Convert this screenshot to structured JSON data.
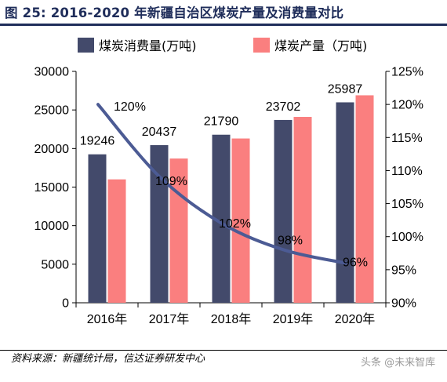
{
  "header": {
    "title": "图 25:  2016-2020 年新疆自治区煤炭产量及消费量对比"
  },
  "footer": {
    "source": "资料来源：新疆统计局，信达证券研发中心",
    "watermark": "头条 @未来智库"
  },
  "colors": {
    "consumption": "#434a6b",
    "production": "#fa7f7f",
    "ratio_line": "#4c5b94",
    "title": "#1f2d5a"
  },
  "chart_data": {
    "type": "bar",
    "title": "",
    "categories": [
      "2016年",
      "2017年",
      "2018年",
      "2019年",
      "2020年"
    ],
    "series": [
      {
        "name": "煤炭消费量(万吨)",
        "type": "bar",
        "axis": "left",
        "values": [
          19246,
          20437,
          21790,
          23702,
          25987
        ],
        "data_labels": [
          "19246",
          "20437",
          "21790",
          "23702",
          "25987"
        ]
      },
      {
        "name": "煤炭产量（万吨)",
        "type": "bar",
        "axis": "left",
        "values": [
          16000,
          18700,
          21300,
          24100,
          26900
        ]
      },
      {
        "name": "",
        "type": "line",
        "axis": "right",
        "values": [
          120,
          109,
          102,
          98,
          96
        ],
        "data_labels": [
          "120%",
          "109%",
          "102%",
          "98%",
          "96%"
        ]
      }
    ],
    "y_left": {
      "lim": [
        0,
        30000
      ],
      "ticks": [
        0,
        5000,
        10000,
        15000,
        20000,
        25000,
        30000
      ],
      "tick_labels": [
        "0",
        "5000",
        "10000",
        "15000",
        "20000",
        "25000",
        "30000"
      ]
    },
    "y_right": {
      "lim": [
        90,
        125
      ],
      "ticks": [
        90,
        95,
        100,
        105,
        110,
        115,
        120,
        125
      ],
      "tick_labels": [
        "90%",
        "95%",
        "100%",
        "105%",
        "110%",
        "115%",
        "120%",
        "125%"
      ]
    },
    "grid": false,
    "legend": "top"
  }
}
